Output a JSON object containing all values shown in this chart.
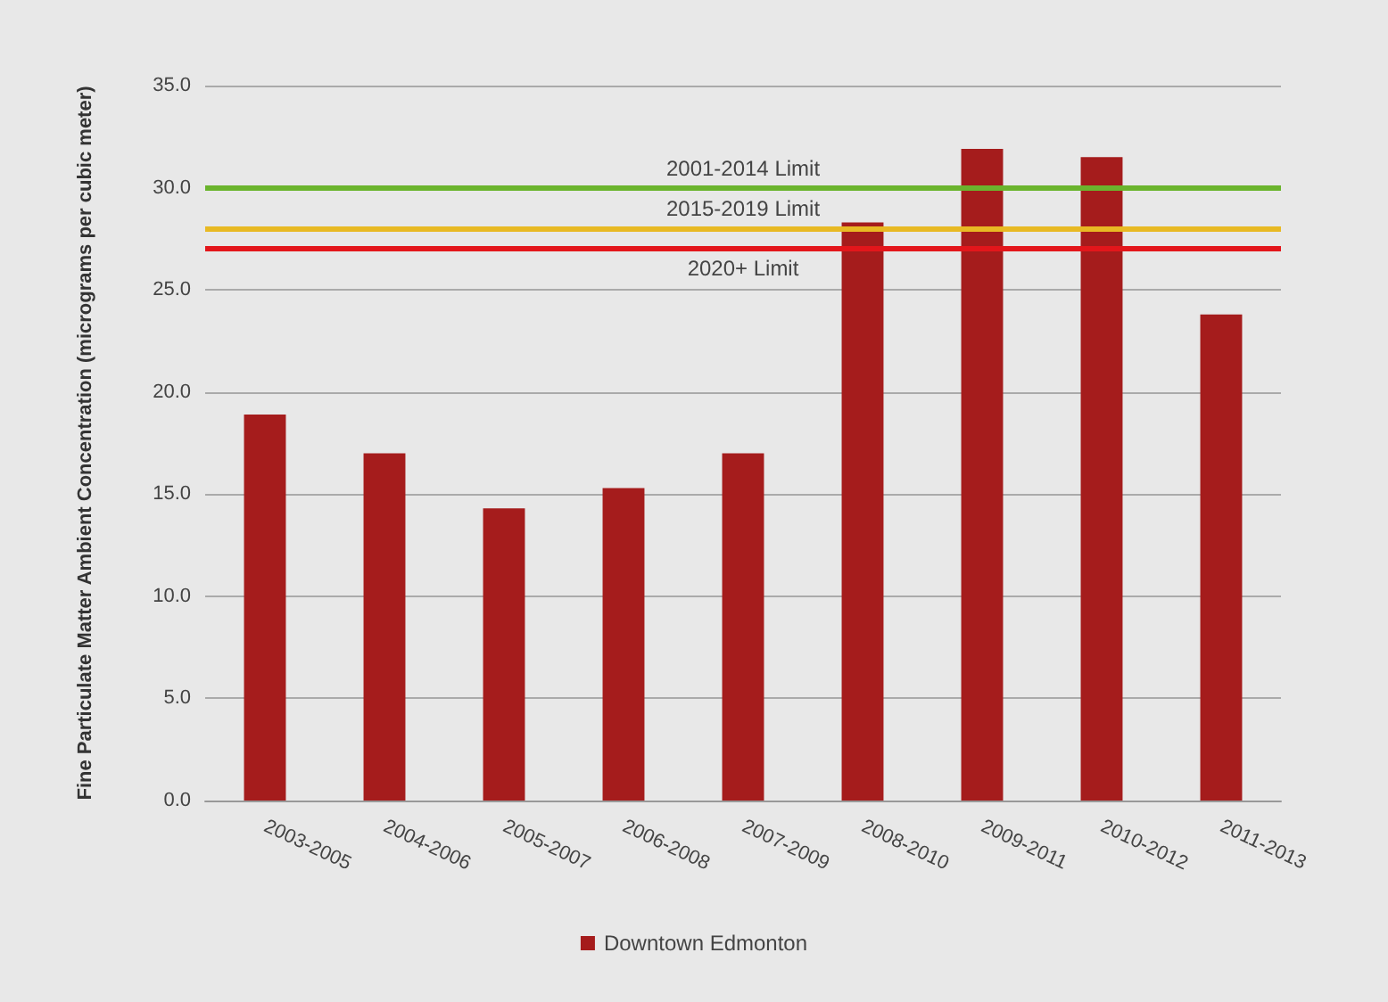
{
  "chart_data": {
    "type": "bar",
    "ylabel": "Fine Particulate Matter Ambient Concentration (micrograms per cubic meter)",
    "categories": [
      "2003-2005",
      "2004-2006",
      "2005-2007",
      "2006-2008",
      "2007-2009",
      "2008-2010",
      "2009-2011",
      "2010-2012",
      "2011-2013"
    ],
    "series": [
      {
        "name": "Downtown Edmonton",
        "color": "#a51c1c",
        "values": [
          18.9,
          17.0,
          14.3,
          15.3,
          17.0,
          28.3,
          31.9,
          31.5,
          23.8
        ]
      }
    ],
    "ylim": [
      0,
      35
    ],
    "yticks": [
      {
        "value": 0,
        "label": "0.0"
      },
      {
        "value": 5,
        "label": "5.0"
      },
      {
        "value": 10,
        "label": "10.0"
      },
      {
        "value": 15,
        "label": "15.0"
      },
      {
        "value": 20,
        "label": "20.0"
      },
      {
        "value": 25,
        "label": "25.0"
      },
      {
        "value": 30,
        "label": "30.0"
      },
      {
        "value": 35,
        "label": "35.0"
      }
    ],
    "ref_lines": [
      {
        "axis": "y",
        "value": 30,
        "label": "2001-2014 Limit",
        "color": "#6ab42d"
      },
      {
        "axis": "y",
        "value": 28,
        "label": "2015-2019 Limit",
        "color": "#e8b923"
      },
      {
        "axis": "y",
        "value": 27,
        "label": "2020+ Limit",
        "color": "#e3161b"
      }
    ],
    "grid": "y",
    "legend": "bottom"
  }
}
